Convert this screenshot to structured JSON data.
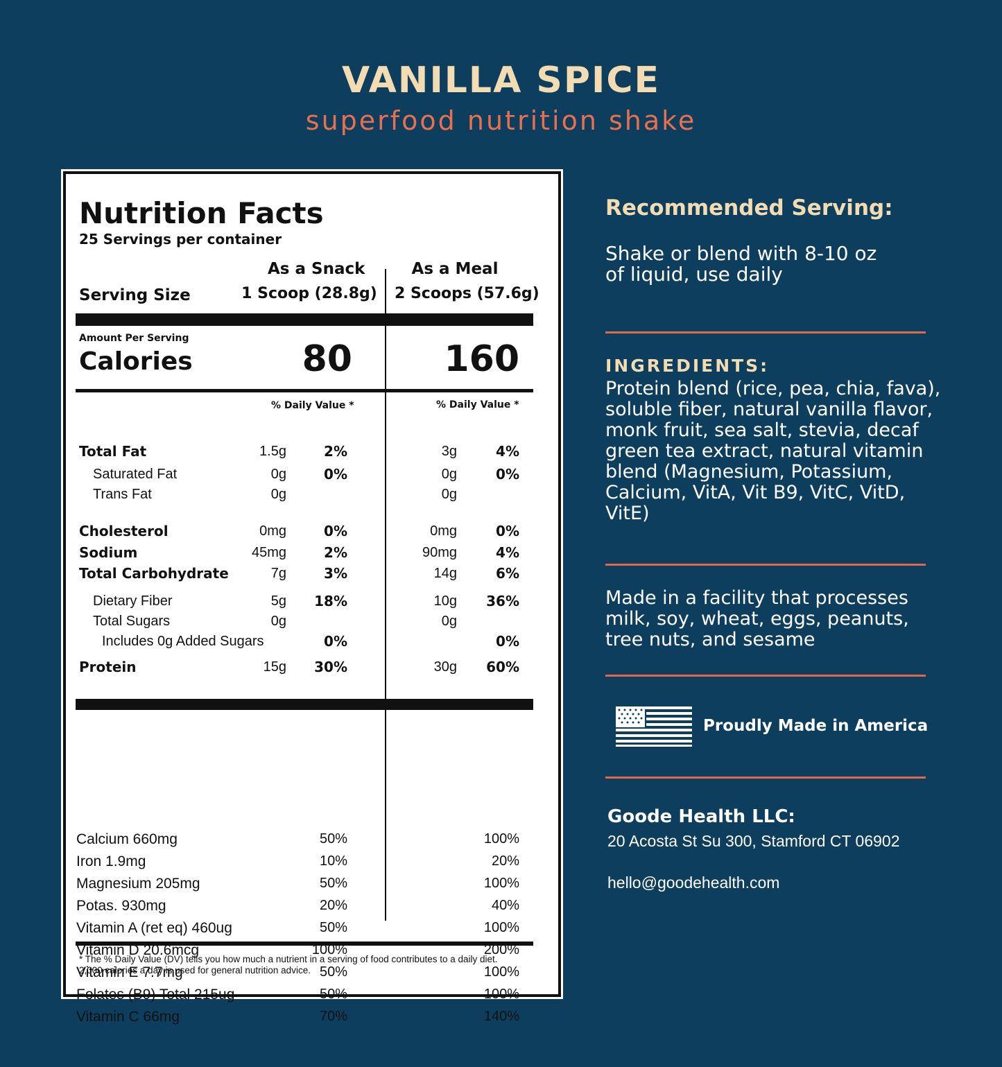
{
  "header": {
    "title": "VANILLA SPICE",
    "subtitle": "superfood nutrition shake"
  },
  "label": {
    "title": "Nutrition Facts",
    "servings": "25 Servings per container",
    "serving_size": "Serving Size",
    "columns": [
      {
        "name": "As a Snack",
        "serving": "1 Scoop (28.8g)",
        "calories": 80
      },
      {
        "name": "As a Meal",
        "serving": "2 Scoops (57.6g)",
        "calories": 160
      }
    ],
    "amount_per_serving": "Amount Per Serving",
    "calories": "Calories",
    "daily_value": "% Daily Value *",
    "nutrients": [
      {
        "name": "Total Fat",
        "snack": "1.5g",
        "snack_dv": "2%",
        "meal": "3g",
        "meal_dv": "4%"
      },
      {
        "name": "Saturated Fat",
        "snack": "0g",
        "snack_dv": "0%",
        "meal": "0g",
        "meal_dv": "0%"
      },
      {
        "name": "Trans Fat",
        "snack": "0g",
        "meal": "0g"
      },
      {
        "name": "Cholesterol",
        "snack": "0mg",
        "snack_dv": "0%",
        "meal": "0mg",
        "meal_dv": "0%"
      },
      {
        "name": "Sodium",
        "snack": "45mg",
        "snack_dv": "2%",
        "meal": "90mg",
        "meal_dv": "4%"
      },
      {
        "name": "Total Carbohydrate",
        "snack": "7g",
        "snack_dv": "3%",
        "meal": "14g",
        "meal_dv": "6%"
      },
      {
        "name": "Dietary Fiber",
        "snack": "5g",
        "snack_dv": "18%",
        "meal": "10g",
        "meal_dv": "36%"
      },
      {
        "name": "Total Sugars",
        "snack": "0g",
        "meal": "0g"
      },
      {
        "name": "Includes 0g Added Sugars",
        "snack_dv": "0%",
        "meal_dv": "0%"
      },
      {
        "name": "Protein",
        "snack": "15g",
        "snack_dv": "30%",
        "meal": "30g",
        "meal_dv": "60%"
      }
    ],
    "vitamins": [
      {
        "name": "Calcium 660mg",
        "snack_dv": "50%",
        "meal_dv": "100%"
      },
      {
        "name": "Iron 1.9mg",
        "snack_dv": "10%",
        "meal_dv": "20%"
      },
      {
        "name": "Magnesium 205mg",
        "snack_dv": "50%",
        "meal_dv": "100%"
      },
      {
        "name": "Potas. 930mg",
        "snack_dv": "20%",
        "meal_dv": "40%"
      },
      {
        "name": "Vitamin A (ret eq) 460ug",
        "snack_dv": "50%",
        "meal_dv": "100%"
      },
      {
        "name": "Vitamin D 20.6mcg",
        "snack_dv": "100%",
        "meal_dv": "200%"
      },
      {
        "name": "Vitamin E 7.7mg",
        "snack_dv": "50%",
        "meal_dv": "100%"
      },
      {
        "name": "Folates (B9) Total 215ug",
        "snack_dv": "50%",
        "meal_dv": "100%"
      },
      {
        "name": "Vitamin C 66mg",
        "snack_dv": "70%",
        "meal_dv": "140%"
      }
    ],
    "footnote": [
      "* The % Daily Value (DV) tells you how much a nutrient in a serving of food contributes to a daily diet.",
      "2,000 calories a day is used for general nutrition advice."
    ]
  },
  "sidebar": {
    "serving_title": "Recommended Serving:",
    "serving_text": [
      "Shake or blend with 8-10 oz",
      "of liquid, use daily"
    ],
    "ingredients_title": "INGREDIENTS:",
    "ingredients": [
      "Protein blend (rice, pea, chia, fava),",
      "soluble fiber, natural vanilla flavor,",
      "monk fruit, sea salt, stevia, decaf",
      "green tea extract, natural vitamin",
      "blend (Magnesium, Potassium,",
      "Calcium, VitA, Vit B9, VitC, VitD,",
      "VitE)"
    ],
    "allergens": [
      "Made in a facility that processes",
      "milk, soy, wheat, eggs, peanuts,",
      "tree nuts, and sesame"
    ],
    "made_in": "Proudly Made in America",
    "company": "Goode Health LLC:",
    "address": "20 Acosta St Su 300, Stamford CT 06902",
    "email": "hello@goodehealth.com"
  }
}
